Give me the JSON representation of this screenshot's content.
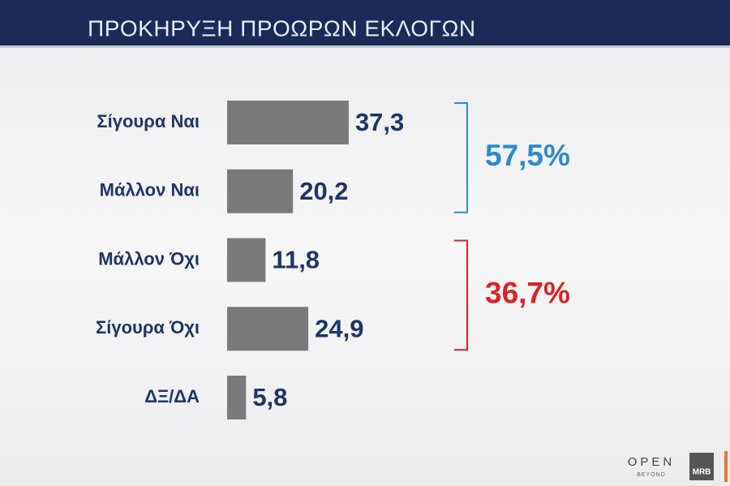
{
  "chart_data": {
    "type": "hbar",
    "title": "ΠΡΟΚΗΡΥΞΗ ΠΡΟΩΡΩΝ ΕΚΛΟΓΩΝ",
    "categories": [
      "Σίγουρα Ναι",
      "Μάλλον Ναι",
      "Μάλλον Όχι",
      "Σίγουρα Όχι",
      "ΔΞ/ΔΑ"
    ],
    "values": [
      37.3,
      20.2,
      11.8,
      24.9,
      5.8
    ],
    "value_labels": [
      "37,3",
      "20,2",
      "11,8",
      "24,9",
      "5,8"
    ],
    "color": "#7a7a7a",
    "annotations": [
      {
        "value": 57.5,
        "label": "57,5%",
        "color": "#2b8cc8"
      },
      {
        "value": 36.7,
        "label": "36,7%",
        "color": "#d8232a"
      }
    ]
  },
  "branding": {
    "channel": "OPEN",
    "tagline": "BEYOND",
    "pollster": "MRB"
  }
}
